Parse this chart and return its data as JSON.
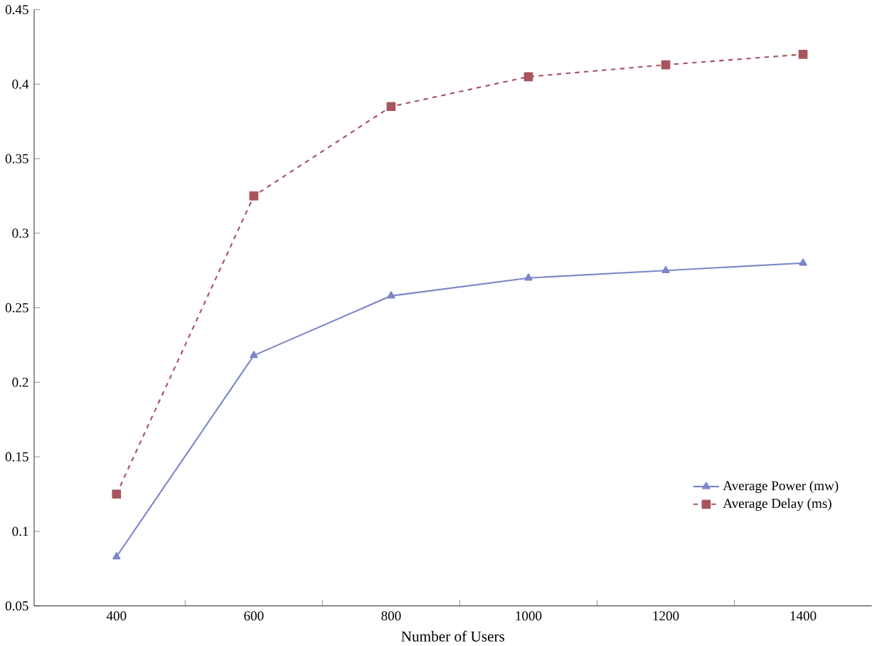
{
  "chart_data": {
    "type": "line",
    "xlabel": "Number of Users",
    "categories": [
      "400",
      "600",
      "800",
      "1000",
      "1200",
      "1400"
    ],
    "ylim": [
      0.05,
      0.45
    ],
    "yticks": [
      0.05,
      0.1,
      0.15,
      0.2,
      0.25,
      0.3,
      0.35,
      0.4,
      0.45
    ],
    "legend": "bottom right",
    "grid": false,
    "series": [
      {
        "name": "Average Power (mw)",
        "color": "#7b86c8",
        "marker": "triangle",
        "line_style": "solid",
        "values": [
          0.083,
          0.218,
          0.258,
          0.27,
          0.275,
          0.28
        ]
      },
      {
        "name": "Average Delay (ms)",
        "color": "#a8545e",
        "marker": "square",
        "line_style": "dashed",
        "values": [
          0.125,
          0.325,
          0.385,
          0.405,
          0.413,
          0.42
        ]
      }
    ]
  }
}
